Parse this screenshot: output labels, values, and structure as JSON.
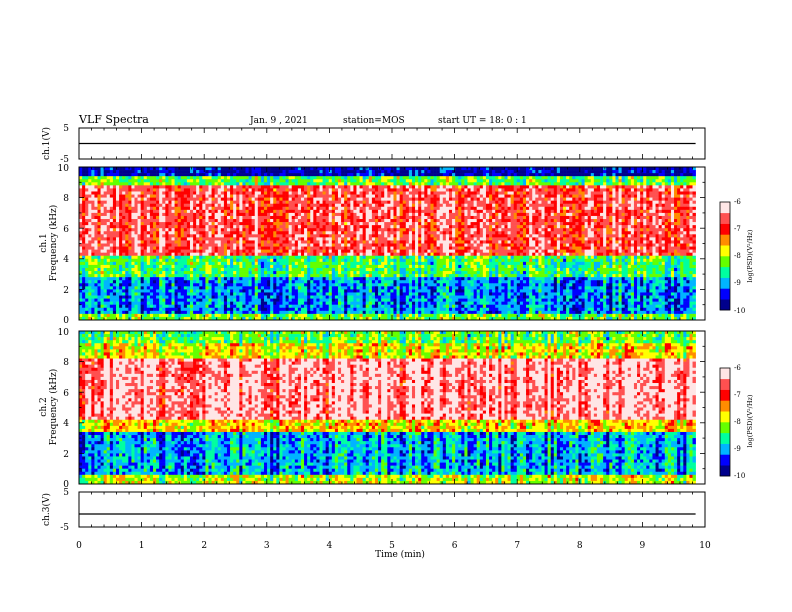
{
  "header": {
    "title": "VLF Spectra",
    "date": "Jan. 9 , 2021",
    "station": "station=MOS",
    "start_ut": "start UT =  18: 0  : 1"
  },
  "chart_data": [
    {
      "type": "line",
      "ylabel": "ch.1(V)",
      "ylim": [
        -5,
        5
      ],
      "yticks": [
        "5",
        "-5"
      ],
      "xlim": [
        0,
        10
      ],
      "x": [
        0,
        9.85
      ],
      "values": [
        0,
        0
      ]
    },
    {
      "type": "heatmap",
      "ylabel_top": "ch.1",
      "ylabel": "Frequency (kHz)",
      "ylim": [
        0,
        10
      ],
      "yticks": [
        "10",
        "8",
        "6",
        "4",
        "2",
        "0"
      ],
      "xlim": [
        0,
        10
      ],
      "data_end_min": 9.85,
      "zlim": [
        -10,
        -6
      ],
      "colorbar_ticks": [
        "-6",
        "-7",
        "-8",
        "-9",
        "-10"
      ],
      "colorbar_label": "log(PSD)(V²/Hz)",
      "bands": [
        {
          "f_low": 0,
          "f_high": 0.4,
          "level": -8.2
        },
        {
          "f_low": 0.4,
          "f_high": 2.8,
          "level": -9.1
        },
        {
          "f_low": 2.8,
          "f_high": 4.2,
          "level": -8.4
        },
        {
          "f_low": 4.2,
          "f_high": 8.8,
          "level": -6.7
        },
        {
          "f_low": 8.8,
          "f_high": 9.4,
          "level": -8.3
        },
        {
          "f_low": 9.4,
          "f_high": 10,
          "level": -9.7
        }
      ]
    },
    {
      "type": "heatmap",
      "ylabel_top": "ch.2",
      "ylabel": "Frequency (kHz)",
      "ylim": [
        0,
        10
      ],
      "yticks": [
        "10",
        "8",
        "6",
        "4",
        "2",
        "0"
      ],
      "xlim": [
        0,
        10
      ],
      "data_end_min": 9.85,
      "zlim": [
        -10,
        -6
      ],
      "colorbar_ticks": [
        "-6",
        "-7",
        "-8",
        "-9",
        "-10"
      ],
      "colorbar_label": "log(PSD)(V²/Hz)",
      "bands": [
        {
          "f_low": 0,
          "f_high": 0.6,
          "level": -8.0
        },
        {
          "f_low": 0.6,
          "f_high": 3.4,
          "level": -9.0
        },
        {
          "f_low": 3.4,
          "f_high": 4.2,
          "level": -7.7
        },
        {
          "f_low": 4.2,
          "f_high": 8.2,
          "level": -6.4
        },
        {
          "f_low": 8.2,
          "f_high": 9.2,
          "level": -7.8
        },
        {
          "f_low": 9.2,
          "f_high": 10,
          "level": -8.3
        }
      ]
    },
    {
      "type": "line",
      "ylabel": "ch.3(V)",
      "ylim": [
        -5,
        5
      ],
      "yticks": [
        "5",
        "-5"
      ],
      "xlim": [
        0,
        10
      ],
      "x": [
        0,
        9.85
      ],
      "values": [
        -1.3,
        -1.3
      ]
    }
  ],
  "x_axis": {
    "label": "Time (min)",
    "ticks": [
      "0",
      "1",
      "2",
      "3",
      "4",
      "5",
      "6",
      "7",
      "8",
      "9",
      "10"
    ]
  },
  "colors": {
    "colormap": [
      "#00008c",
      "#0000ff",
      "#00b4ff",
      "#00ffa0",
      "#64ff00",
      "#ffff00",
      "#ff8c00",
      "#ff0000",
      "#ff5050",
      "#ffe6e6"
    ]
  }
}
